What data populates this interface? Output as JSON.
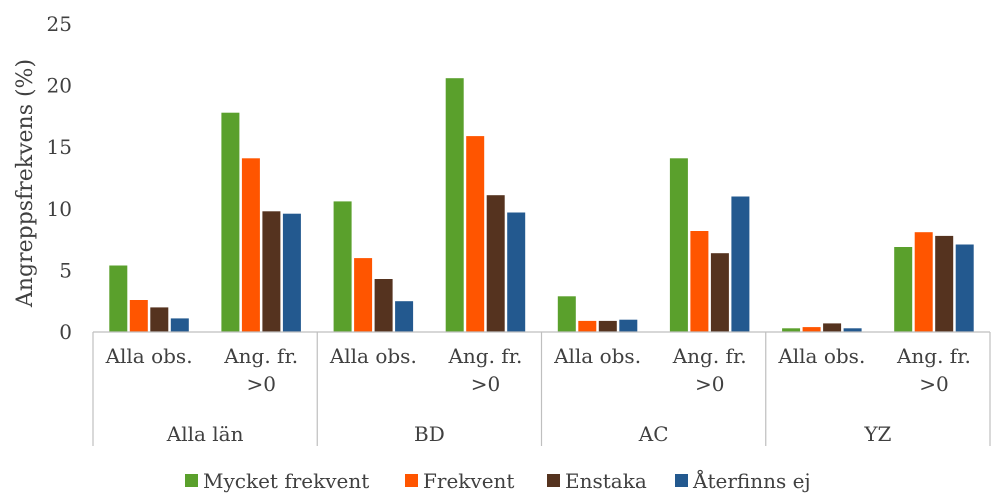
{
  "chart_data": {
    "type": "bar",
    "title": "",
    "ylabel": "Angreppsfrekvens (%)",
    "xlabel": "",
    "ylim": [
      0,
      25
    ],
    "yticks": [
      0,
      5,
      10,
      15,
      20,
      25
    ],
    "grid": false,
    "legend_position": "bottom",
    "groups": [
      "Alla län",
      "BD",
      "AC",
      "YZ"
    ],
    "categories": [
      "Alla obs.",
      "Ang. fr. >0",
      "Alla obs.",
      "Ang. fr. >0",
      "Alla obs.",
      "Ang. fr. >0",
      "Alla obs.",
      "Ang. fr. >0"
    ],
    "category_lines": [
      [
        "Alla obs."
      ],
      [
        "Ang. fr.",
        ">0"
      ],
      [
        "Alla obs."
      ],
      [
        "Ang. fr.",
        ">0"
      ],
      [
        "Alla obs."
      ],
      [
        "Ang. fr.",
        ">0"
      ],
      [
        "Alla obs."
      ],
      [
        "Ang. fr.",
        ">0"
      ]
    ],
    "series": [
      {
        "name": "Mycket frekvent",
        "color": "#5aa02c",
        "values": [
          5.4,
          17.8,
          10.6,
          20.6,
          2.9,
          14.1,
          0.3,
          6.9
        ]
      },
      {
        "name": "Frekvent",
        "color": "#ff5500",
        "values": [
          2.6,
          14.1,
          6.0,
          15.9,
          0.9,
          8.2,
          0.4,
          8.1
        ]
      },
      {
        "name": "Enstaka",
        "color": "#55331f",
        "values": [
          2.0,
          9.8,
          4.3,
          11.1,
          0.9,
          6.4,
          0.7,
          7.8
        ]
      },
      {
        "name": "Återfinns ej",
        "color": "#23598f",
        "values": [
          1.1,
          9.6,
          2.5,
          9.7,
          1.0,
          11.0,
          0.3,
          7.1
        ]
      }
    ]
  }
}
